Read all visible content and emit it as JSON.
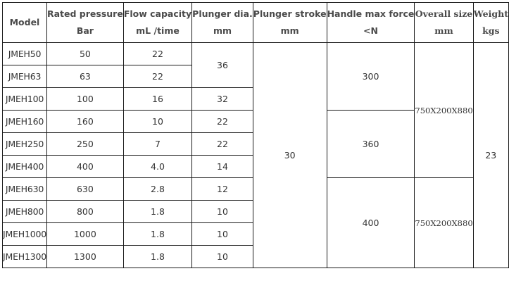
{
  "table": {
    "headers": [
      {
        "line1": "Model",
        "line2": ""
      },
      {
        "line1": "Rated pressure",
        "line2": "Bar"
      },
      {
        "line1": "Flow capacity",
        "line2": "mL /time"
      },
      {
        "line1": "Plunger dia.",
        "line2": "mm"
      },
      {
        "line1": "Plunger stroke",
        "line2": "mm"
      },
      {
        "line1": "Handle max force",
        "line2": "<N"
      },
      {
        "line1": "Overall size",
        "line2": "mm"
      },
      {
        "line1": "Weight",
        "line2": "kgs"
      }
    ],
    "rows": [
      {
        "model": "JMEH50",
        "pressure": "50",
        "flow": "22",
        "dia": "36"
      },
      {
        "model": "JMEH63",
        "pressure": "63",
        "flow": "22"
      },
      {
        "model": "JMEH100",
        "pressure": "100",
        "flow": "16",
        "dia": "32"
      },
      {
        "model": "JMEH160",
        "pressure": "160",
        "flow": "10",
        "dia": "22"
      },
      {
        "model": "JMEH250",
        "pressure": "250",
        "flow": "7",
        "dia": "22"
      },
      {
        "model": "JMEH400",
        "pressure": "400",
        "flow": "4.0",
        "dia": "14"
      },
      {
        "model": "JMEH630",
        "pressure": "630",
        "flow": "2.8",
        "dia": "12"
      },
      {
        "model": "JMEH800",
        "pressure": "800",
        "flow": "1.8",
        "dia": "10"
      },
      {
        "model": "JMEH1000",
        "pressure": "1000",
        "flow": "1.8",
        "dia": "10"
      },
      {
        "model": "JMEH1300",
        "pressure": "1300",
        "flow": "1.8",
        "dia": "10"
      }
    ],
    "plunger_stroke": "30",
    "handle_force": [
      "300",
      "360",
      "400"
    ],
    "overall_size": [
      "750X200X880",
      "750X200X880"
    ],
    "weight": "23"
  }
}
